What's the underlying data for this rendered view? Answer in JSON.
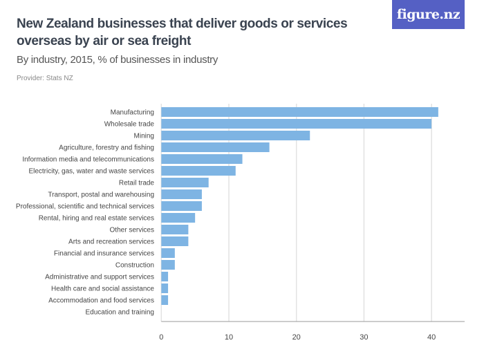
{
  "header": {
    "title": "New Zealand businesses that deliver goods or services overseas by air or sea freight",
    "subtitle": "By industry, 2015, % of businesses in industry",
    "provider": "Provider: Stats NZ",
    "logo": "figure.nz",
    "logo_color": "#5560c4"
  },
  "chart_data": {
    "type": "bar",
    "orientation": "horizontal",
    "categories": [
      "Manufacturing",
      "Wholesale trade",
      "Mining",
      "Agriculture, forestry and fishing",
      "Information media and telecommunications",
      "Electricity, gas, water and waste services",
      "Retail trade",
      "Transport, postal and warehousing",
      "Professional, scientific and technical services",
      "Rental, hiring and real estate services",
      "Other services",
      "Arts and recreation services",
      "Financial and insurance services",
      "Construction",
      "Administrative and support services",
      "Health care and social assistance",
      "Accommodation and food services",
      "Education and training"
    ],
    "values": [
      41,
      40,
      22,
      16,
      12,
      11,
      7,
      6,
      6,
      5,
      4,
      4,
      2,
      2,
      1,
      1,
      1,
      0
    ],
    "xlim": [
      0,
      45
    ],
    "xticks": [
      0,
      10,
      20,
      30,
      40
    ],
    "grid": true,
    "bar_color": "#7eb4e3"
  }
}
